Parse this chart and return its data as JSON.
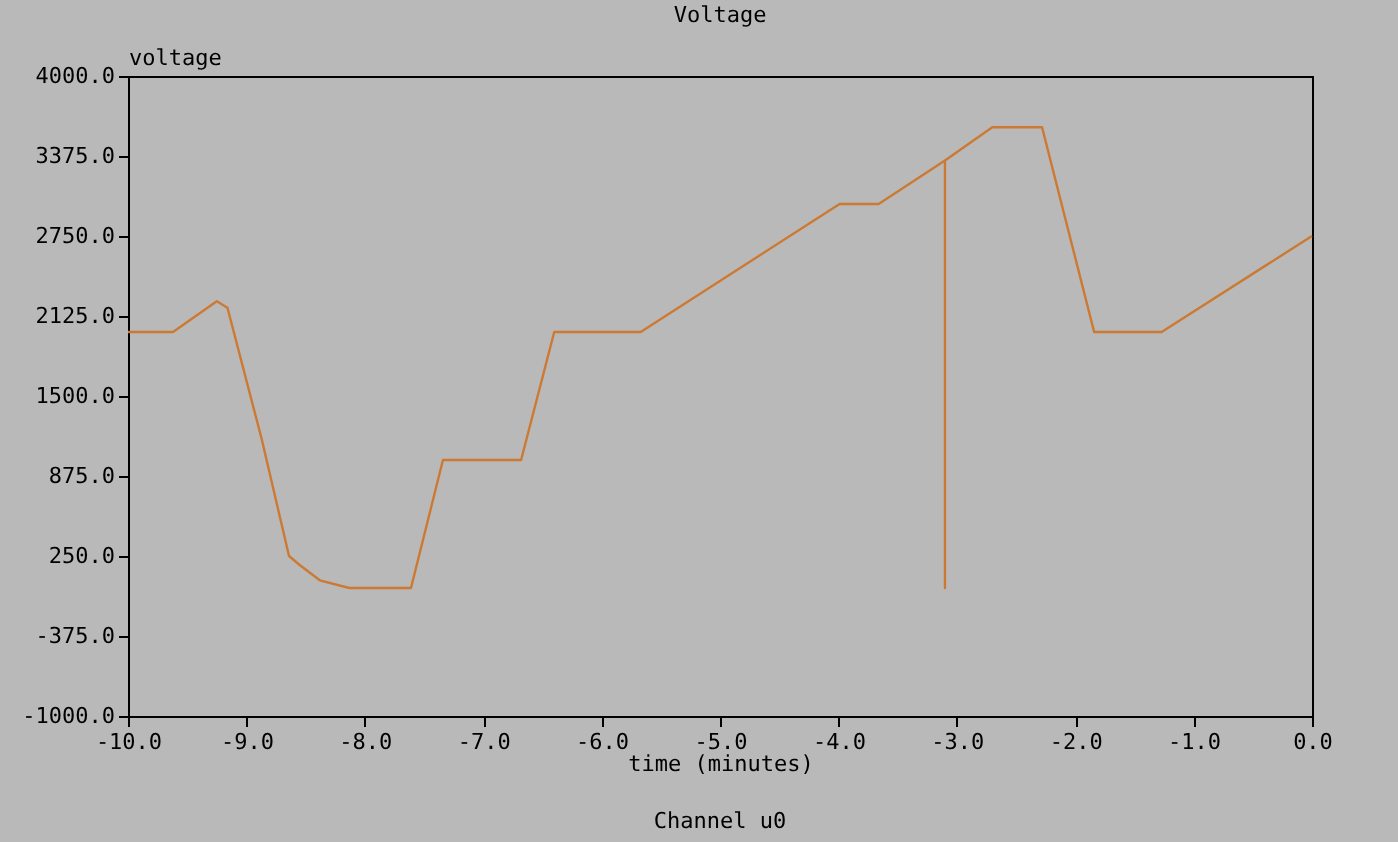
{
  "chart_data": {
    "type": "line",
    "title": "Voltage",
    "xlabel": "time (minutes)",
    "ylabel": "voltage",
    "annotations": [
      "Channel u0"
    ],
    "x": [
      -10.0,
      -9.62,
      -9.25,
      -9.16,
      -8.87,
      -8.64,
      -8.55,
      -8.38,
      -8.13,
      -7.61,
      -7.34,
      -6.68,
      -6.4,
      -5.67,
      -3.99,
      -3.66,
      -3.1,
      -3.1,
      -3.1,
      -2.7,
      -2.28,
      -1.84,
      -1.27,
      0.0
    ],
    "series": [
      {
        "color": "#cc7a33",
        "values": [
          2000,
          2000,
          2240,
          2190,
          1160,
          250,
          180,
          60,
          0,
          0,
          1000,
          1000,
          2000,
          2000,
          3000,
          3000,
          3340,
          0,
          3340,
          3600,
          3600,
          2000,
          2000,
          2750
        ]
      }
    ],
    "xlim": [
      -10.0,
      0.0
    ],
    "ylim": [
      -1000.0,
      4000.0
    ],
    "xticks": [
      {
        "value": -10,
        "label": "-10.0"
      },
      {
        "value": -9,
        "label": "-9.0"
      },
      {
        "value": -8,
        "label": "-8.0"
      },
      {
        "value": -7,
        "label": "-7.0"
      },
      {
        "value": -6,
        "label": "-6.0"
      },
      {
        "value": -5,
        "label": "-5.0"
      },
      {
        "value": -4,
        "label": "-4.0"
      },
      {
        "value": -3,
        "label": "-3.0"
      },
      {
        "value": -2,
        "label": "-2.0"
      },
      {
        "value": -1,
        "label": "-1.0"
      },
      {
        "value": 0,
        "label": "0.0"
      }
    ],
    "yticks": [
      {
        "value": -1000,
        "label": "-1000.0"
      },
      {
        "value": -375,
        "label": "-375.0"
      },
      {
        "value": 250,
        "label": "250.0"
      },
      {
        "value": 875,
        "label": "875.0"
      },
      {
        "value": 1500,
        "label": "1500.0"
      },
      {
        "value": 2125,
        "label": "2125.0"
      },
      {
        "value": 2750,
        "label": "2750.0"
      },
      {
        "value": 3375,
        "label": "3375.0"
      },
      {
        "value": 4000,
        "label": "4000.0"
      }
    ],
    "grid": false,
    "legend": false,
    "marker": "none",
    "line_style": "solid"
  }
}
